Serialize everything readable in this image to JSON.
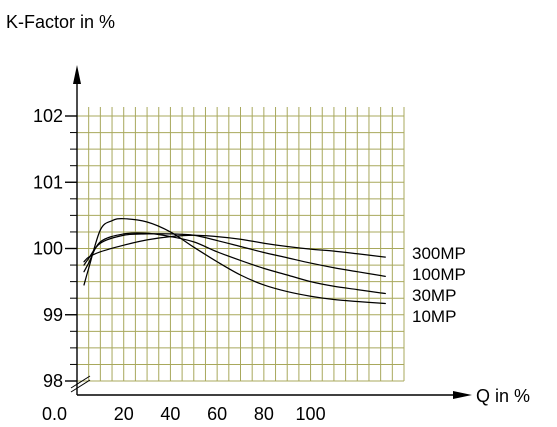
{
  "chart_data": {
    "type": "line",
    "ylabel": "K-Factor in %",
    "xlabel": "Q in %",
    "x_origin_label": "0.0",
    "x_tick_labels": [
      "20",
      "40",
      "60",
      "80",
      "100"
    ],
    "y_tick_labels": [
      "98",
      "99",
      "100",
      "101",
      "102"
    ],
    "xlim": [
      0,
      140
    ],
    "ylim": [
      98,
      102.25
    ],
    "x_ticks": [
      20,
      40,
      60,
      80,
      100
    ],
    "y_ticks": [
      98,
      99,
      100,
      101,
      102
    ],
    "grid": true,
    "series": [
      {
        "name": "300MP",
        "points": [
          [
            3,
            99.8
          ],
          [
            5,
            99.87
          ],
          [
            10,
            99.95
          ],
          [
            20,
            100.05
          ],
          [
            30,
            100.13
          ],
          [
            40,
            100.18
          ],
          [
            50,
            100.2
          ],
          [
            60,
            100.18
          ],
          [
            70,
            100.14
          ],
          [
            80,
            100.08
          ],
          [
            90,
            100.03
          ],
          [
            100,
            99.99
          ],
          [
            110,
            99.96
          ],
          [
            120,
            99.92
          ],
          [
            132,
            99.87
          ]
        ]
      },
      {
        "name": "100MP",
        "points": [
          [
            3,
            99.75
          ],
          [
            5,
            99.85
          ],
          [
            10,
            100.08
          ],
          [
            20,
            100.2
          ],
          [
            30,
            100.22
          ],
          [
            40,
            100.22
          ],
          [
            50,
            100.2
          ],
          [
            60,
            100.12
          ],
          [
            70,
            100.03
          ],
          [
            80,
            99.94
          ],
          [
            90,
            99.86
          ],
          [
            100,
            99.78
          ],
          [
            110,
            99.71
          ],
          [
            120,
            99.65
          ],
          [
            132,
            99.58
          ]
        ]
      },
      {
        "name": "30MP",
        "points": [
          [
            3,
            99.65
          ],
          [
            5,
            99.78
          ],
          [
            10,
            100.1
          ],
          [
            20,
            100.22
          ],
          [
            30,
            100.23
          ],
          [
            40,
            100.18
          ],
          [
            50,
            100.1
          ],
          [
            60,
            99.95
          ],
          [
            70,
            99.82
          ],
          [
            80,
            99.7
          ],
          [
            90,
            99.6
          ],
          [
            100,
            99.5
          ],
          [
            110,
            99.43
          ],
          [
            120,
            99.38
          ],
          [
            132,
            99.32
          ]
        ]
      },
      {
        "name": "10MP",
        "points": [
          [
            3,
            99.45
          ],
          [
            5,
            99.7
          ],
          [
            10,
            100.28
          ],
          [
            15,
            100.42
          ],
          [
            20,
            100.45
          ],
          [
            30,
            100.4
          ],
          [
            40,
            100.25
          ],
          [
            50,
            100.02
          ],
          [
            60,
            99.8
          ],
          [
            70,
            99.6
          ],
          [
            80,
            99.45
          ],
          [
            90,
            99.35
          ],
          [
            100,
            99.28
          ],
          [
            110,
            99.23
          ],
          [
            120,
            99.2
          ],
          [
            132,
            99.17
          ]
        ]
      }
    ]
  }
}
